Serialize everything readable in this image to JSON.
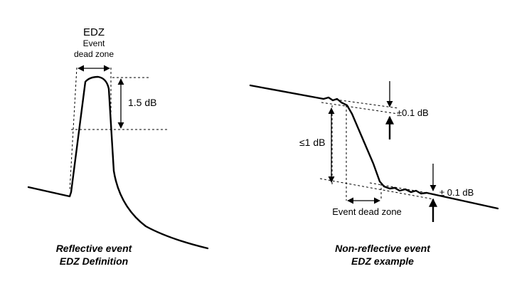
{
  "left": {
    "edz_title": "EDZ",
    "edz_sub1": "Event",
    "edz_sub2": "dead zone",
    "height_label": "1.5 dB",
    "caption1": "Reflective event",
    "caption2": "EDZ Definition"
  },
  "right": {
    "upper_tol": "±0.1 dB",
    "lower_tol": "± 0.1 dB",
    "drop_label": "≤1 dB",
    "dead_zone_label": "Event dead zone",
    "caption1": "Non-reflective event",
    "caption2": "EDZ example"
  }
}
